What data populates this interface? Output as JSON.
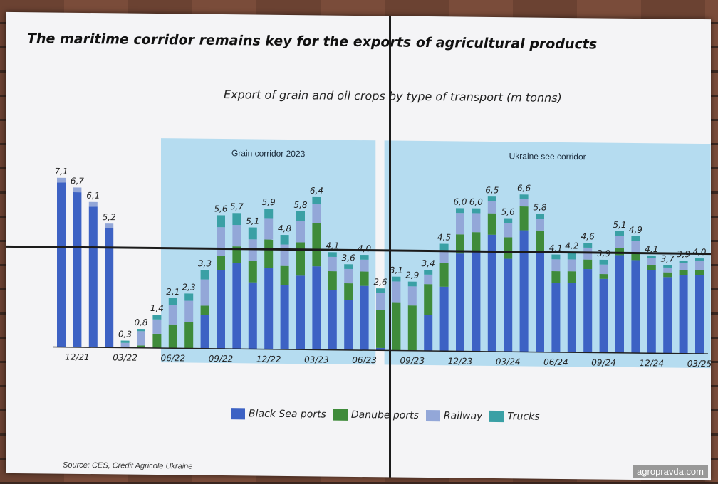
{
  "title": "The maritime corridor remains key for the exports of agricultural products",
  "subtitle": "Export of grain and oil crops by type of transport (m tonns)",
  "source": "Source: CES, Credit Agricole Ukraine",
  "watermark": "agropravda.com",
  "colors": {
    "black_sea": "#3d62c4",
    "danube": "#3f8b3a",
    "railway": "#93a7d8",
    "trucks": "#3aa0a5",
    "band": "#a9d7ee"
  },
  "legend": [
    {
      "key": "black_sea",
      "label": "Black Sea ports"
    },
    {
      "key": "danube",
      "label": "Danube ports"
    },
    {
      "key": "railway",
      "label": "Railway"
    },
    {
      "key": "trucks",
      "label": "Trucks"
    }
  ],
  "chart_data": {
    "type": "bar",
    "stacked": true,
    "x_ticks": [
      "12/21",
      "03/22",
      "06/22",
      "09/22",
      "12/22",
      "03/23",
      "06/23",
      "09/23",
      "12/23",
      "03/24",
      "06/24",
      "09/24",
      "12/24",
      "03/25"
    ],
    "regions": [
      {
        "label": "Grain corridor 2023",
        "from": "06/22",
        "to": "06/23"
      },
      {
        "label": "Ukraine see corridor",
        "from": "08/23",
        "to": "03/25"
      }
    ],
    "categories": [
      "11/21",
      "12/21",
      "01/22",
      "02/22",
      "03/22",
      "04/22",
      "05/22",
      "06/22",
      "07/22",
      "08/22",
      "09/22",
      "10/22",
      "11/22",
      "12/22",
      "01/23",
      "02/23",
      "03/23",
      "04/23",
      "05/23",
      "06/23",
      "07/23",
      "08/23",
      "09/23",
      "10/23",
      "11/23",
      "12/23",
      "01/24",
      "02/24",
      "03/24",
      "04/24",
      "05/24",
      "06/24",
      "07/24",
      "08/24",
      "09/24",
      "10/24",
      "11/24",
      "12/24",
      "01/25",
      "02/25",
      "03/25"
    ],
    "totals": [
      "7,1",
      "6,7",
      "6,1",
      "5,2",
      "0,3",
      "0,8",
      "1,4",
      "2,1",
      "2,3",
      "3,3",
      "5,6",
      "5,7",
      "5,1",
      "5,9",
      "4,8",
      "5,8",
      "6,4",
      "4,1",
      "3,6",
      "4,0",
      "2,6",
      "3,1",
      "2,9",
      "3,4",
      "4,5",
      "6,0",
      "6,0",
      "6,5",
      "5,6",
      "6,6",
      "5,8",
      "4,1",
      "4,2",
      "4,6",
      "3,9",
      "5,1",
      "4,9",
      "4,1",
      "3,7",
      "3,9",
      "4,0"
    ],
    "series": [
      {
        "name": "Black Sea ports",
        "values": [
          6.9,
          6.5,
          5.9,
          5.0,
          0.0,
          0.0,
          0.0,
          0.0,
          0.0,
          1.4,
          3.3,
          3.6,
          2.8,
          3.4,
          2.7,
          3.1,
          3.5,
          2.5,
          2.1,
          2.7,
          0.1,
          0.0,
          0.0,
          1.5,
          2.7,
          4.1,
          4.2,
          4.9,
          3.9,
          5.1,
          4.2,
          2.9,
          2.9,
          3.5,
          3.1,
          4.1,
          3.9,
          3.5,
          3.2,
          3.3,
          3.3
        ]
      },
      {
        "name": "Danube ports",
        "values": [
          0.0,
          0.0,
          0.0,
          0.0,
          0.0,
          0.1,
          0.6,
          1.0,
          1.1,
          0.4,
          0.6,
          0.7,
          0.9,
          1.2,
          0.8,
          1.4,
          1.8,
          0.8,
          0.7,
          0.6,
          1.6,
          2.0,
          1.9,
          1.3,
          1.0,
          0.8,
          0.8,
          0.9,
          0.9,
          1.0,
          0.9,
          0.5,
          0.5,
          0.4,
          0.2,
          0.3,
          0.3,
          0.2,
          0.2,
          0.2,
          0.2
        ]
      },
      {
        "name": "Railway",
        "values": [
          0.2,
          0.2,
          0.2,
          0.2,
          0.2,
          0.6,
          0.6,
          0.8,
          0.9,
          1.1,
          1.2,
          0.9,
          0.9,
          0.9,
          0.9,
          0.9,
          0.8,
          0.6,
          0.6,
          0.5,
          0.7,
          0.9,
          0.8,
          0.4,
          0.5,
          0.9,
          0.8,
          0.5,
          0.6,
          0.3,
          0.5,
          0.5,
          0.5,
          0.5,
          0.4,
          0.5,
          0.5,
          0.3,
          0.2,
          0.3,
          0.4
        ]
      },
      {
        "name": "Trucks",
        "values": [
          0.0,
          0.0,
          0.0,
          0.0,
          0.1,
          0.1,
          0.2,
          0.3,
          0.3,
          0.4,
          0.5,
          0.5,
          0.5,
          0.4,
          0.4,
          0.4,
          0.3,
          0.2,
          0.2,
          0.2,
          0.2,
          0.2,
          0.2,
          0.2,
          0.3,
          0.2,
          0.2,
          0.2,
          0.2,
          0.2,
          0.2,
          0.2,
          0.3,
          0.2,
          0.2,
          0.2,
          0.2,
          0.1,
          0.1,
          0.1,
          0.1
        ]
      }
    ]
  }
}
